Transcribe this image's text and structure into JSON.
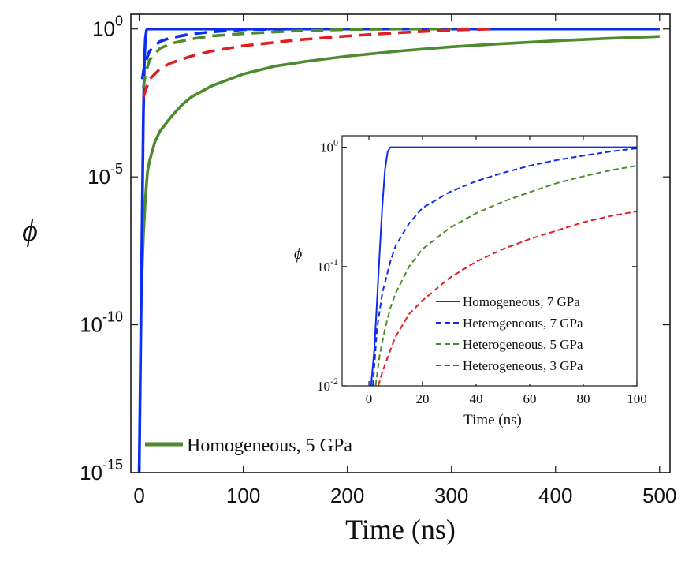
{
  "chart_data": [
    {
      "type": "line",
      "title": "",
      "xlabel": "Time (ns)",
      "ylabel": "ϕ",
      "xlim": [
        -8,
        510
      ],
      "ylim_exponent": [
        -15,
        0.5
      ],
      "yscale": "log",
      "xticks": [
        0,
        100,
        200,
        300,
        400,
        500
      ],
      "yticks": [
        {
          "base": "10",
          "exp": "0",
          "value": 1
        },
        {
          "base": "10",
          "exp": "-5",
          "value": 1e-05
        },
        {
          "base": "10",
          "exp": "-10",
          "value": 1e-10
        },
        {
          "base": "10",
          "exp": "-15",
          "value": 1e-15
        }
      ],
      "grid": false,
      "legend_position": "bottom-left",
      "legend": [
        {
          "label": "Homogeneous, 5 GPa",
          "color": "#4e8a2e",
          "style": "solid"
        }
      ],
      "series": [
        {
          "name": "Homogeneous, 5 GPa",
          "color": "#4e8a2e",
          "style": "solid",
          "x": [
            1.5,
            2,
            3,
            4,
            6,
            8,
            10,
            15,
            20,
            30,
            40,
            50,
            70,
            100,
            130,
            160,
            200,
            250,
            300,
            350,
            400,
            450,
            500
          ],
          "y": [
            1e-10,
            1e-09,
            1e-08,
            1e-07,
            2e-06,
            1.5e-05,
            3.5e-05,
            0.00015,
            0.00035,
            0.001,
            0.0025,
            0.005,
            0.012,
            0.03,
            0.055,
            0.08,
            0.12,
            0.18,
            0.25,
            0.32,
            0.4,
            0.48,
            0.56
          ]
        },
        {
          "name": "",
          "color": "#0a2ef0",
          "style": "solid",
          "x": [
            0,
            1,
            2,
            3,
            4,
            5,
            6,
            7,
            8,
            500
          ],
          "y": [
            1e-15,
            1e-12,
            1e-09,
            1e-06,
            0.001,
            0.08,
            0.5,
            0.9,
            1,
            1
          ]
        },
        {
          "name": "",
          "color": "#0a2ef0",
          "style": "dashed",
          "x": [
            3,
            5,
            10,
            20,
            30,
            50,
            70,
            100,
            150,
            200,
            300,
            500
          ],
          "y": [
            0.02,
            0.06,
            0.18,
            0.38,
            0.5,
            0.68,
            0.8,
            0.95,
            1,
            1,
            1,
            1
          ]
        },
        {
          "name": "",
          "color": "#4e8a2e",
          "style": "dashed",
          "x": [
            4,
            6,
            10,
            20,
            30,
            50,
            70,
            100,
            150,
            200,
            250,
            300
          ],
          "y": [
            0.01,
            0.03,
            0.09,
            0.22,
            0.32,
            0.46,
            0.58,
            0.7,
            0.86,
            0.96,
            1,
            1
          ]
        },
        {
          "name": "",
          "color": "#e02020",
          "style": "dashed",
          "x": [
            4,
            6,
            10,
            20,
            30,
            50,
            70,
            100,
            150,
            200,
            250,
            300,
            340
          ],
          "y": [
            0.005,
            0.008,
            0.02,
            0.045,
            0.07,
            0.12,
            0.18,
            0.27,
            0.42,
            0.58,
            0.75,
            0.92,
            1
          ]
        }
      ]
    },
    {
      "type": "line",
      "title": "",
      "xlabel": "Time (ns)",
      "ylabel": "ϕ",
      "xlim": [
        -10,
        100
      ],
      "ylim": [
        0.01,
        1.25
      ],
      "yscale": "log",
      "xticks": [
        0,
        20,
        40,
        60,
        80,
        100
      ],
      "yticks": [
        {
          "base": "10",
          "exp": "0",
          "value": 1
        },
        {
          "base": "10",
          "exp": "-1",
          "value": 0.1
        },
        {
          "base": "10",
          "exp": "-2",
          "value": 0.01
        }
      ],
      "grid": false,
      "legend_position": "bottom-right",
      "legend": [
        {
          "label": "Homogeneous, 7 GPa",
          "color": "#0a2ef0",
          "style": "solid"
        },
        {
          "label": "Heterogeneous, 7 GPa",
          "color": "#0a2ef0",
          "style": "dashed"
        },
        {
          "label": "Heterogeneous, 5 GPa",
          "color": "#4e8a2e",
          "style": "dashed"
        },
        {
          "label": "Heterogeneous, 3 GPa",
          "color": "#e02020",
          "style": "dashed"
        }
      ],
      "series": [
        {
          "name": "Homogeneous, 7 GPa",
          "color": "#0a2ef0",
          "style": "solid",
          "x": [
            0.8,
            2,
            3,
            4,
            5,
            6,
            7,
            8,
            100
          ],
          "y": [
            0.01,
            0.02,
            0.05,
            0.13,
            0.32,
            0.65,
            0.92,
            1,
            1
          ]
        },
        {
          "name": "Heterogeneous, 7 GPa",
          "color": "#0a2ef0",
          "style": "dashed",
          "x": [
            1.5,
            3,
            5,
            8,
            10,
            15,
            20,
            30,
            40,
            50,
            60,
            70,
            80,
            90,
            100
          ],
          "y": [
            0.01,
            0.03,
            0.06,
            0.11,
            0.15,
            0.23,
            0.31,
            0.42,
            0.52,
            0.61,
            0.7,
            0.78,
            0.85,
            0.92,
            0.98
          ]
        },
        {
          "name": "Heterogeneous, 5 GPa",
          "color": "#4e8a2e",
          "style": "dashed",
          "x": [
            2.5,
            4,
            6,
            8,
            10,
            15,
            20,
            30,
            40,
            50,
            60,
            70,
            80,
            90,
            100
          ],
          "y": [
            0.01,
            0.018,
            0.03,
            0.045,
            0.06,
            0.1,
            0.14,
            0.21,
            0.28,
            0.35,
            0.42,
            0.5,
            0.57,
            0.64,
            0.7
          ]
        },
        {
          "name": "Heterogeneous, 3 GPa",
          "color": "#e02020",
          "style": "dashed",
          "x": [
            3.5,
            5,
            8,
            10,
            15,
            20,
            30,
            40,
            50,
            60,
            70,
            80,
            90,
            100
          ],
          "y": [
            0.01,
            0.013,
            0.02,
            0.026,
            0.04,
            0.052,
            0.08,
            0.11,
            0.14,
            0.17,
            0.2,
            0.235,
            0.265,
            0.29
          ]
        }
      ]
    }
  ]
}
